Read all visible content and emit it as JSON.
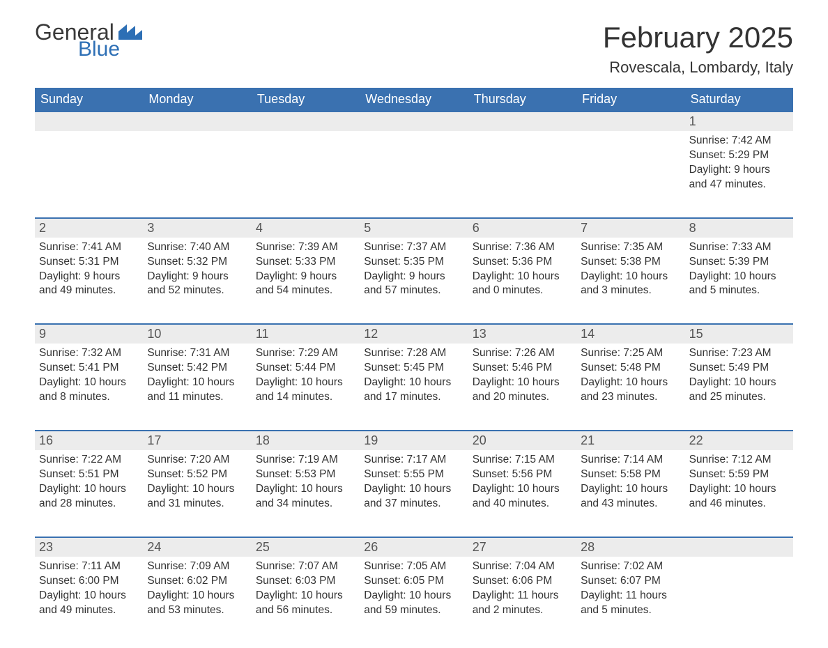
{
  "logo": {
    "general": "General",
    "blue": "Blue"
  },
  "title": {
    "month": "February 2025",
    "location": "Rovescala, Lombardy, Italy"
  },
  "colors": {
    "header_bg": "#3a71b0",
    "header_text": "#ffffff",
    "daynum_bg": "#ececec",
    "cell_border": "#3a71b0",
    "logo_blue": "#2d6fb5",
    "text": "#333333"
  },
  "days_of_week": [
    "Sunday",
    "Monday",
    "Tuesday",
    "Wednesday",
    "Thursday",
    "Friday",
    "Saturday"
  ],
  "weeks": [
    [
      {
        "num": "",
        "sunrise": "",
        "sunset": "",
        "daylight1": "",
        "daylight2": ""
      },
      {
        "num": "",
        "sunrise": "",
        "sunset": "",
        "daylight1": "",
        "daylight2": ""
      },
      {
        "num": "",
        "sunrise": "",
        "sunset": "",
        "daylight1": "",
        "daylight2": ""
      },
      {
        "num": "",
        "sunrise": "",
        "sunset": "",
        "daylight1": "",
        "daylight2": ""
      },
      {
        "num": "",
        "sunrise": "",
        "sunset": "",
        "daylight1": "",
        "daylight2": ""
      },
      {
        "num": "",
        "sunrise": "",
        "sunset": "",
        "daylight1": "",
        "daylight2": ""
      },
      {
        "num": "1",
        "sunrise": "Sunrise: 7:42 AM",
        "sunset": "Sunset: 5:29 PM",
        "daylight1": "Daylight: 9 hours",
        "daylight2": "and 47 minutes."
      }
    ],
    [
      {
        "num": "2",
        "sunrise": "Sunrise: 7:41 AM",
        "sunset": "Sunset: 5:31 PM",
        "daylight1": "Daylight: 9 hours",
        "daylight2": "and 49 minutes."
      },
      {
        "num": "3",
        "sunrise": "Sunrise: 7:40 AM",
        "sunset": "Sunset: 5:32 PM",
        "daylight1": "Daylight: 9 hours",
        "daylight2": "and 52 minutes."
      },
      {
        "num": "4",
        "sunrise": "Sunrise: 7:39 AM",
        "sunset": "Sunset: 5:33 PM",
        "daylight1": "Daylight: 9 hours",
        "daylight2": "and 54 minutes."
      },
      {
        "num": "5",
        "sunrise": "Sunrise: 7:37 AM",
        "sunset": "Sunset: 5:35 PM",
        "daylight1": "Daylight: 9 hours",
        "daylight2": "and 57 minutes."
      },
      {
        "num": "6",
        "sunrise": "Sunrise: 7:36 AM",
        "sunset": "Sunset: 5:36 PM",
        "daylight1": "Daylight: 10 hours",
        "daylight2": "and 0 minutes."
      },
      {
        "num": "7",
        "sunrise": "Sunrise: 7:35 AM",
        "sunset": "Sunset: 5:38 PM",
        "daylight1": "Daylight: 10 hours",
        "daylight2": "and 3 minutes."
      },
      {
        "num": "8",
        "sunrise": "Sunrise: 7:33 AM",
        "sunset": "Sunset: 5:39 PM",
        "daylight1": "Daylight: 10 hours",
        "daylight2": "and 5 minutes."
      }
    ],
    [
      {
        "num": "9",
        "sunrise": "Sunrise: 7:32 AM",
        "sunset": "Sunset: 5:41 PM",
        "daylight1": "Daylight: 10 hours",
        "daylight2": "and 8 minutes."
      },
      {
        "num": "10",
        "sunrise": "Sunrise: 7:31 AM",
        "sunset": "Sunset: 5:42 PM",
        "daylight1": "Daylight: 10 hours",
        "daylight2": "and 11 minutes."
      },
      {
        "num": "11",
        "sunrise": "Sunrise: 7:29 AM",
        "sunset": "Sunset: 5:44 PM",
        "daylight1": "Daylight: 10 hours",
        "daylight2": "and 14 minutes."
      },
      {
        "num": "12",
        "sunrise": "Sunrise: 7:28 AM",
        "sunset": "Sunset: 5:45 PM",
        "daylight1": "Daylight: 10 hours",
        "daylight2": "and 17 minutes."
      },
      {
        "num": "13",
        "sunrise": "Sunrise: 7:26 AM",
        "sunset": "Sunset: 5:46 PM",
        "daylight1": "Daylight: 10 hours",
        "daylight2": "and 20 minutes."
      },
      {
        "num": "14",
        "sunrise": "Sunrise: 7:25 AM",
        "sunset": "Sunset: 5:48 PM",
        "daylight1": "Daylight: 10 hours",
        "daylight2": "and 23 minutes."
      },
      {
        "num": "15",
        "sunrise": "Sunrise: 7:23 AM",
        "sunset": "Sunset: 5:49 PM",
        "daylight1": "Daylight: 10 hours",
        "daylight2": "and 25 minutes."
      }
    ],
    [
      {
        "num": "16",
        "sunrise": "Sunrise: 7:22 AM",
        "sunset": "Sunset: 5:51 PM",
        "daylight1": "Daylight: 10 hours",
        "daylight2": "and 28 minutes."
      },
      {
        "num": "17",
        "sunrise": "Sunrise: 7:20 AM",
        "sunset": "Sunset: 5:52 PM",
        "daylight1": "Daylight: 10 hours",
        "daylight2": "and 31 minutes."
      },
      {
        "num": "18",
        "sunrise": "Sunrise: 7:19 AM",
        "sunset": "Sunset: 5:53 PM",
        "daylight1": "Daylight: 10 hours",
        "daylight2": "and 34 minutes."
      },
      {
        "num": "19",
        "sunrise": "Sunrise: 7:17 AM",
        "sunset": "Sunset: 5:55 PM",
        "daylight1": "Daylight: 10 hours",
        "daylight2": "and 37 minutes."
      },
      {
        "num": "20",
        "sunrise": "Sunrise: 7:15 AM",
        "sunset": "Sunset: 5:56 PM",
        "daylight1": "Daylight: 10 hours",
        "daylight2": "and 40 minutes."
      },
      {
        "num": "21",
        "sunrise": "Sunrise: 7:14 AM",
        "sunset": "Sunset: 5:58 PM",
        "daylight1": "Daylight: 10 hours",
        "daylight2": "and 43 minutes."
      },
      {
        "num": "22",
        "sunrise": "Sunrise: 7:12 AM",
        "sunset": "Sunset: 5:59 PM",
        "daylight1": "Daylight: 10 hours",
        "daylight2": "and 46 minutes."
      }
    ],
    [
      {
        "num": "23",
        "sunrise": "Sunrise: 7:11 AM",
        "sunset": "Sunset: 6:00 PM",
        "daylight1": "Daylight: 10 hours",
        "daylight2": "and 49 minutes."
      },
      {
        "num": "24",
        "sunrise": "Sunrise: 7:09 AM",
        "sunset": "Sunset: 6:02 PM",
        "daylight1": "Daylight: 10 hours",
        "daylight2": "and 53 minutes."
      },
      {
        "num": "25",
        "sunrise": "Sunrise: 7:07 AM",
        "sunset": "Sunset: 6:03 PM",
        "daylight1": "Daylight: 10 hours",
        "daylight2": "and 56 minutes."
      },
      {
        "num": "26",
        "sunrise": "Sunrise: 7:05 AM",
        "sunset": "Sunset: 6:05 PM",
        "daylight1": "Daylight: 10 hours",
        "daylight2": "and 59 minutes."
      },
      {
        "num": "27",
        "sunrise": "Sunrise: 7:04 AM",
        "sunset": "Sunset: 6:06 PM",
        "daylight1": "Daylight: 11 hours",
        "daylight2": "and 2 minutes."
      },
      {
        "num": "28",
        "sunrise": "Sunrise: 7:02 AM",
        "sunset": "Sunset: 6:07 PM",
        "daylight1": "Daylight: 11 hours",
        "daylight2": "and 5 minutes."
      },
      {
        "num": "",
        "sunrise": "",
        "sunset": "",
        "daylight1": "",
        "daylight2": ""
      }
    ]
  ]
}
